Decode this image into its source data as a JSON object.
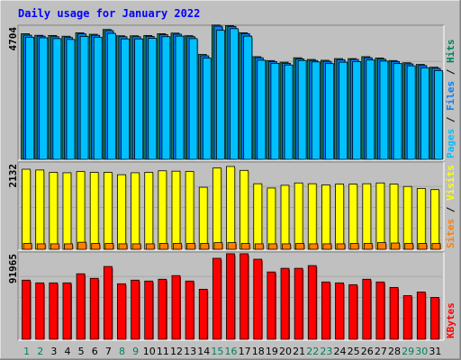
{
  "chart_data": {
    "type": "bar",
    "title": "Daily usage for January 2022",
    "categories": [
      "1",
      "2",
      "3",
      "4",
      "5",
      "6",
      "7",
      "8",
      "9",
      "10",
      "11",
      "12",
      "13",
      "14",
      "15",
      "16",
      "17",
      "18",
      "19",
      "20",
      "21",
      "22",
      "23",
      "24",
      "25",
      "26",
      "27",
      "28",
      "29",
      "30",
      "31"
    ],
    "weekend_days": [
      1,
      2,
      8,
      9,
      15,
      16,
      22,
      23,
      29,
      30
    ],
    "panels": [
      {
        "axis_label": "4704",
        "ymax": 4704,
        "legend": [
          {
            "text": "Pages",
            "color": "#00c0ff"
          },
          {
            "text": "Files",
            "color": "#0080ff"
          },
          {
            "text": "Hits",
            "color": "#00805c"
          }
        ],
        "separator": " / ",
        "series": [
          {
            "name": "Hits",
            "color": "#208060",
            "values": [
              4528,
              4470,
              4464,
              4437,
              4560,
              4508,
              4680,
              4453,
              4453,
              4464,
              4528,
              4549,
              4456,
              3780,
              4840,
              4820,
              4560,
              3700,
              3560,
              3500,
              3660,
              3600,
              3570,
              3630,
              3630,
              3700,
              3650,
              3560,
              3480,
              3420,
              3320
            ]
          },
          {
            "name": "Files",
            "color": "#0080ff",
            "values": [
              4476,
              4440,
              4420,
              4390,
              4520,
              4470,
              4640,
              4420,
              4420,
              4430,
              4490,
              4510,
              4420,
              3730,
              4800,
              4790,
              4530,
              3660,
              3520,
              3460,
              3620,
              3560,
              3530,
              3590,
              3600,
              3660,
              3610,
              3520,
              3440,
              3380,
              3280
            ]
          },
          {
            "name": "Pages",
            "color": "#00c0ff",
            "values": [
              4400,
              4380,
              4350,
              4320,
              4430,
              4400,
              4540,
              4340,
              4340,
              4360,
              4420,
              4440,
              4350,
              3650,
              4650,
              4710,
              4440,
              3570,
              3460,
              3400,
              3560,
              3510,
              3450,
              3500,
              3520,
              3580,
              3540,
              3450,
              3370,
              3300,
              3200
            ]
          }
        ]
      },
      {
        "axis_label": "2132",
        "ymax": 2132,
        "legend": [
          {
            "text": "Sites",
            "color": "#ff8000"
          },
          {
            "text": "Visits",
            "color": "#ffff00"
          }
        ],
        "separator": " / ",
        "series": [
          {
            "name": "Visits",
            "color": "#ffff00",
            "values": [
              2040,
              2020,
              1960,
              1950,
              1980,
              1960,
              1960,
              1900,
              1950,
              1960,
              2000,
              1990,
              1980,
              1580,
              2070,
              2110,
              2010,
              1670,
              1560,
              1630,
              1690,
              1670,
              1640,
              1660,
              1660,
              1670,
              1690,
              1660,
              1600,
              1550,
              1520
            ]
          },
          {
            "name": "Sites",
            "color": "#ff8000",
            "values": [
              150,
              140,
              140,
              140,
              180,
              150,
              150,
              140,
              140,
              140,
              150,
              150,
              150,
              150,
              170,
              170,
              150,
              140,
              140,
              140,
              150,
              140,
              140,
              140,
              150,
              150,
              170,
              160,
              150,
              150,
              150
            ]
          }
        ]
      },
      {
        "axis_label": "91965",
        "ymax": 91965,
        "legend": [
          {
            "text": "KBytes",
            "color": "#ff0000"
          }
        ],
        "separator": "",
        "series": [
          {
            "name": "KBytes",
            "color": "#ff0000",
            "values": [
              65000,
              62000,
              62000,
              62000,
              72000,
              67000,
              80000,
              61000,
              65000,
              64000,
              66000,
              70000,
              64000,
              55000,
              89000,
              94000,
              94000,
              88000,
              74000,
              78000,
              78000,
              81000,
              63000,
              62000,
              60000,
              66000,
              63000,
              57000,
              48000,
              52000,
              46000
            ]
          }
        ]
      }
    ],
    "colors": {
      "background": "#c0c0c0",
      "plot_bg": "#c0c0c0",
      "title": "#0000ff",
      "weekday_label": "#000000",
      "weekend_label": "#00805c",
      "axis_label": "#000000"
    }
  }
}
